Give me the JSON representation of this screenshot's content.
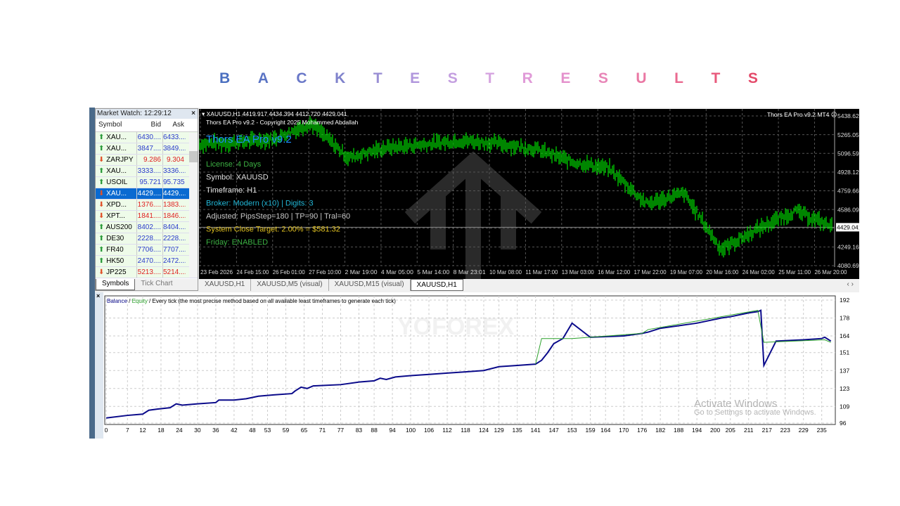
{
  "page_title_letters": [
    "B",
    "A",
    "C",
    "K",
    "T",
    "E",
    "S",
    "T",
    "R",
    "E",
    "S",
    "U",
    "L",
    "T",
    "S"
  ],
  "title_colors": [
    "#4a6fc0",
    "#5a74c4",
    "#6a78c8",
    "#7f82cc",
    "#9a8fd4",
    "#b096dc",
    "#c49fe0",
    "#d6a4e0",
    "#e09ad8",
    "#e491cc",
    "#e886b8",
    "#ea78a4",
    "#ea6a90",
    "#e85a7c",
    "#e44a6a"
  ],
  "market_watch": {
    "title": "Market Watch: 12:29:12",
    "close": "×",
    "columns": [
      "Symbol",
      "Bid",
      "Ask"
    ],
    "rows": [
      {
        "symbol": "XAU...",
        "bid": "6430....",
        "ask": "6433....",
        "dir": "up"
      },
      {
        "symbol": "XAU...",
        "bid": "3847....",
        "ask": "3849....",
        "dir": "up"
      },
      {
        "symbol": "ZARJPY",
        "bid": "9.286",
        "ask": "9.304",
        "dir": "down"
      },
      {
        "symbol": "XAU...",
        "bid": "3333....",
        "ask": "3336....",
        "dir": "up"
      },
      {
        "symbol": "USOIL",
        "bid": "95.721",
        "ask": "95.735",
        "dir": "up"
      },
      {
        "symbol": "XAU...",
        "bid": "4429....",
        "ask": "4429....",
        "dir": "down",
        "selected": true
      },
      {
        "symbol": "XPD...",
        "bid": "1376....",
        "ask": "1383....",
        "dir": "down"
      },
      {
        "symbol": "XPT...",
        "bid": "1841....",
        "ask": "1846....",
        "dir": "down"
      },
      {
        "symbol": "AUS200",
        "bid": "8402....",
        "ask": "8404....",
        "dir": "up"
      },
      {
        "symbol": "DE30",
        "bid": "2228....",
        "ask": "2228....",
        "dir": "up"
      },
      {
        "symbol": "FR40",
        "bid": "7706....",
        "ask": "7707....",
        "dir": "up"
      },
      {
        "symbol": "HK50",
        "bid": "2470....",
        "ask": "2472....",
        "dir": "up"
      },
      {
        "symbol": "JP225",
        "bid": "5213....",
        "ask": "5214....",
        "dir": "down"
      }
    ],
    "tabs": [
      "Symbols",
      "Tick Chart"
    ]
  },
  "price_chart": {
    "header": "XAUUSD,H1  4419.917 4434.394 4412.720 4429.041",
    "copyright": "Thors EA Pro v9.2 - Copyright 2025 Mohammed Abdallah",
    "ea_label": "Thors EA Pro v9.2 MT4",
    "ea_title": "Thors EA Pro v9.2",
    "info_lines": [
      {
        "text": "License: 4 Days",
        "color": "#3cb043"
      },
      {
        "text": "Symbol: XAUUSD",
        "color": "#e0e0e0"
      },
      {
        "text": "Timeframe: H1",
        "color": "#e0e0e0"
      },
      {
        "text": "Broker: Modern (x10) | Digits: 3",
        "color": "#22b8d8"
      },
      {
        "text": "Adjusted: PipsStep=180 | TP=90 | Tral=60",
        "color": "#c8c8c8"
      },
      {
        "text": "System Close Target: 2.00% = $581.32",
        "color": "#e0c020"
      },
      {
        "text": "Friday: ENABLED",
        "color": "#3cb043"
      }
    ],
    "y_ticks": [
      "5438.625",
      "5265.055",
      "5096.590",
      "4928.125",
      "4759.660",
      "4586.090",
      "4429.041",
      "4249.160",
      "4080.695"
    ],
    "current_price": "4429.041",
    "x_ticks": [
      "23 Feb 2026",
      "24 Feb 15:00",
      "26 Feb 01:00",
      "27 Feb 10:00",
      "2 Mar 19:00",
      "4 Mar 05:00",
      "5 Mar 14:00",
      "8 Mar 23:01",
      "10 Mar 08:00",
      "11 Mar 17:00",
      "13 Mar 03:00",
      "16 Mar 12:00",
      "17 Mar 22:00",
      "19 Mar 07:00",
      "20 Mar 16:00",
      "24 Mar 02:00",
      "25 Mar 11:00",
      "26 Mar 20:00"
    ],
    "approx_closes": [
      5183,
      5200,
      5230,
      5374,
      5060,
      5150,
      5180,
      5215,
      5190,
      5140,
      5024,
      4960,
      4641,
      4737,
      4227,
      4418,
      4577,
      4429
    ],
    "candle_color": "#00e000",
    "watermark": "YOFOREX"
  },
  "chart_tabs": [
    "XAUUSD,H1",
    "XAUUSD,M5 (visual)",
    "XAUUSD,M15 (visual)",
    "XAUUSD,H1"
  ],
  "chart_data": {
    "type": "line",
    "legend_balance": "Balance",
    "legend_sep": " / ",
    "legend_equity": "Equity",
    "legend_rest": " / Every tick (the most precise method based on all available least timeframes to generate each tick)",
    "x_ticks": [
      "0",
      "7",
      "12",
      "18",
      "24",
      "30",
      "36",
      "42",
      "48",
      "53",
      "59",
      "65",
      "71",
      "77",
      "83",
      "88",
      "94",
      "100",
      "106",
      "112",
      "118",
      "124",
      "129",
      "135",
      "141",
      "147",
      "153",
      "159",
      "164",
      "170",
      "176",
      "182",
      "188",
      "194",
      "200",
      "205",
      "211",
      "217",
      "223",
      "229",
      "235"
    ],
    "y_ticks": [
      "192",
      "178",
      "164",
      "151",
      "137",
      "123",
      "109",
      "96"
    ],
    "xlim": [
      0,
      239
    ],
    "ylim": [
      96,
      192
    ],
    "grid": true,
    "balance": {
      "x": [
        0,
        7,
        12,
        14,
        17,
        21,
        23,
        25,
        30,
        36,
        37,
        42,
        46,
        50,
        55,
        61,
        62,
        64,
        66,
        68,
        77,
        83,
        88,
        90,
        92,
        95,
        100,
        106,
        112,
        118,
        124,
        129,
        135,
        141,
        143,
        145,
        147,
        150,
        153,
        159,
        170,
        176,
        178,
        182,
        188,
        194,
        200,
        202,
        205,
        211,
        214,
        215,
        216,
        220,
        229,
        235,
        236,
        238
      ],
      "y": [
        100,
        102,
        103,
        106,
        107,
        108,
        111,
        110,
        111,
        112,
        114,
        114,
        115,
        117,
        118,
        119,
        121,
        124,
        123,
        125,
        126,
        128,
        129,
        131,
        130,
        132,
        133,
        134,
        135,
        136,
        137,
        140,
        141,
        142,
        145,
        151,
        158,
        162,
        174,
        163,
        164,
        166,
        167,
        170,
        172,
        174,
        177,
        178,
        179,
        182,
        183,
        184,
        141,
        160,
        161,
        162,
        163,
        160
      ]
    },
    "equity": {
      "x": [
        141,
        143,
        153,
        176,
        178,
        214,
        216,
        236,
        238
      ],
      "y": [
        142,
        162,
        162,
        166,
        169,
        184,
        159,
        161,
        159
      ]
    },
    "balance_color": "#0a0a8a",
    "equity_color": "#2aa02a"
  },
  "os_overlay": {
    "line1": "Activate Windows",
    "line2": "Go to Settings to activate Windows."
  }
}
